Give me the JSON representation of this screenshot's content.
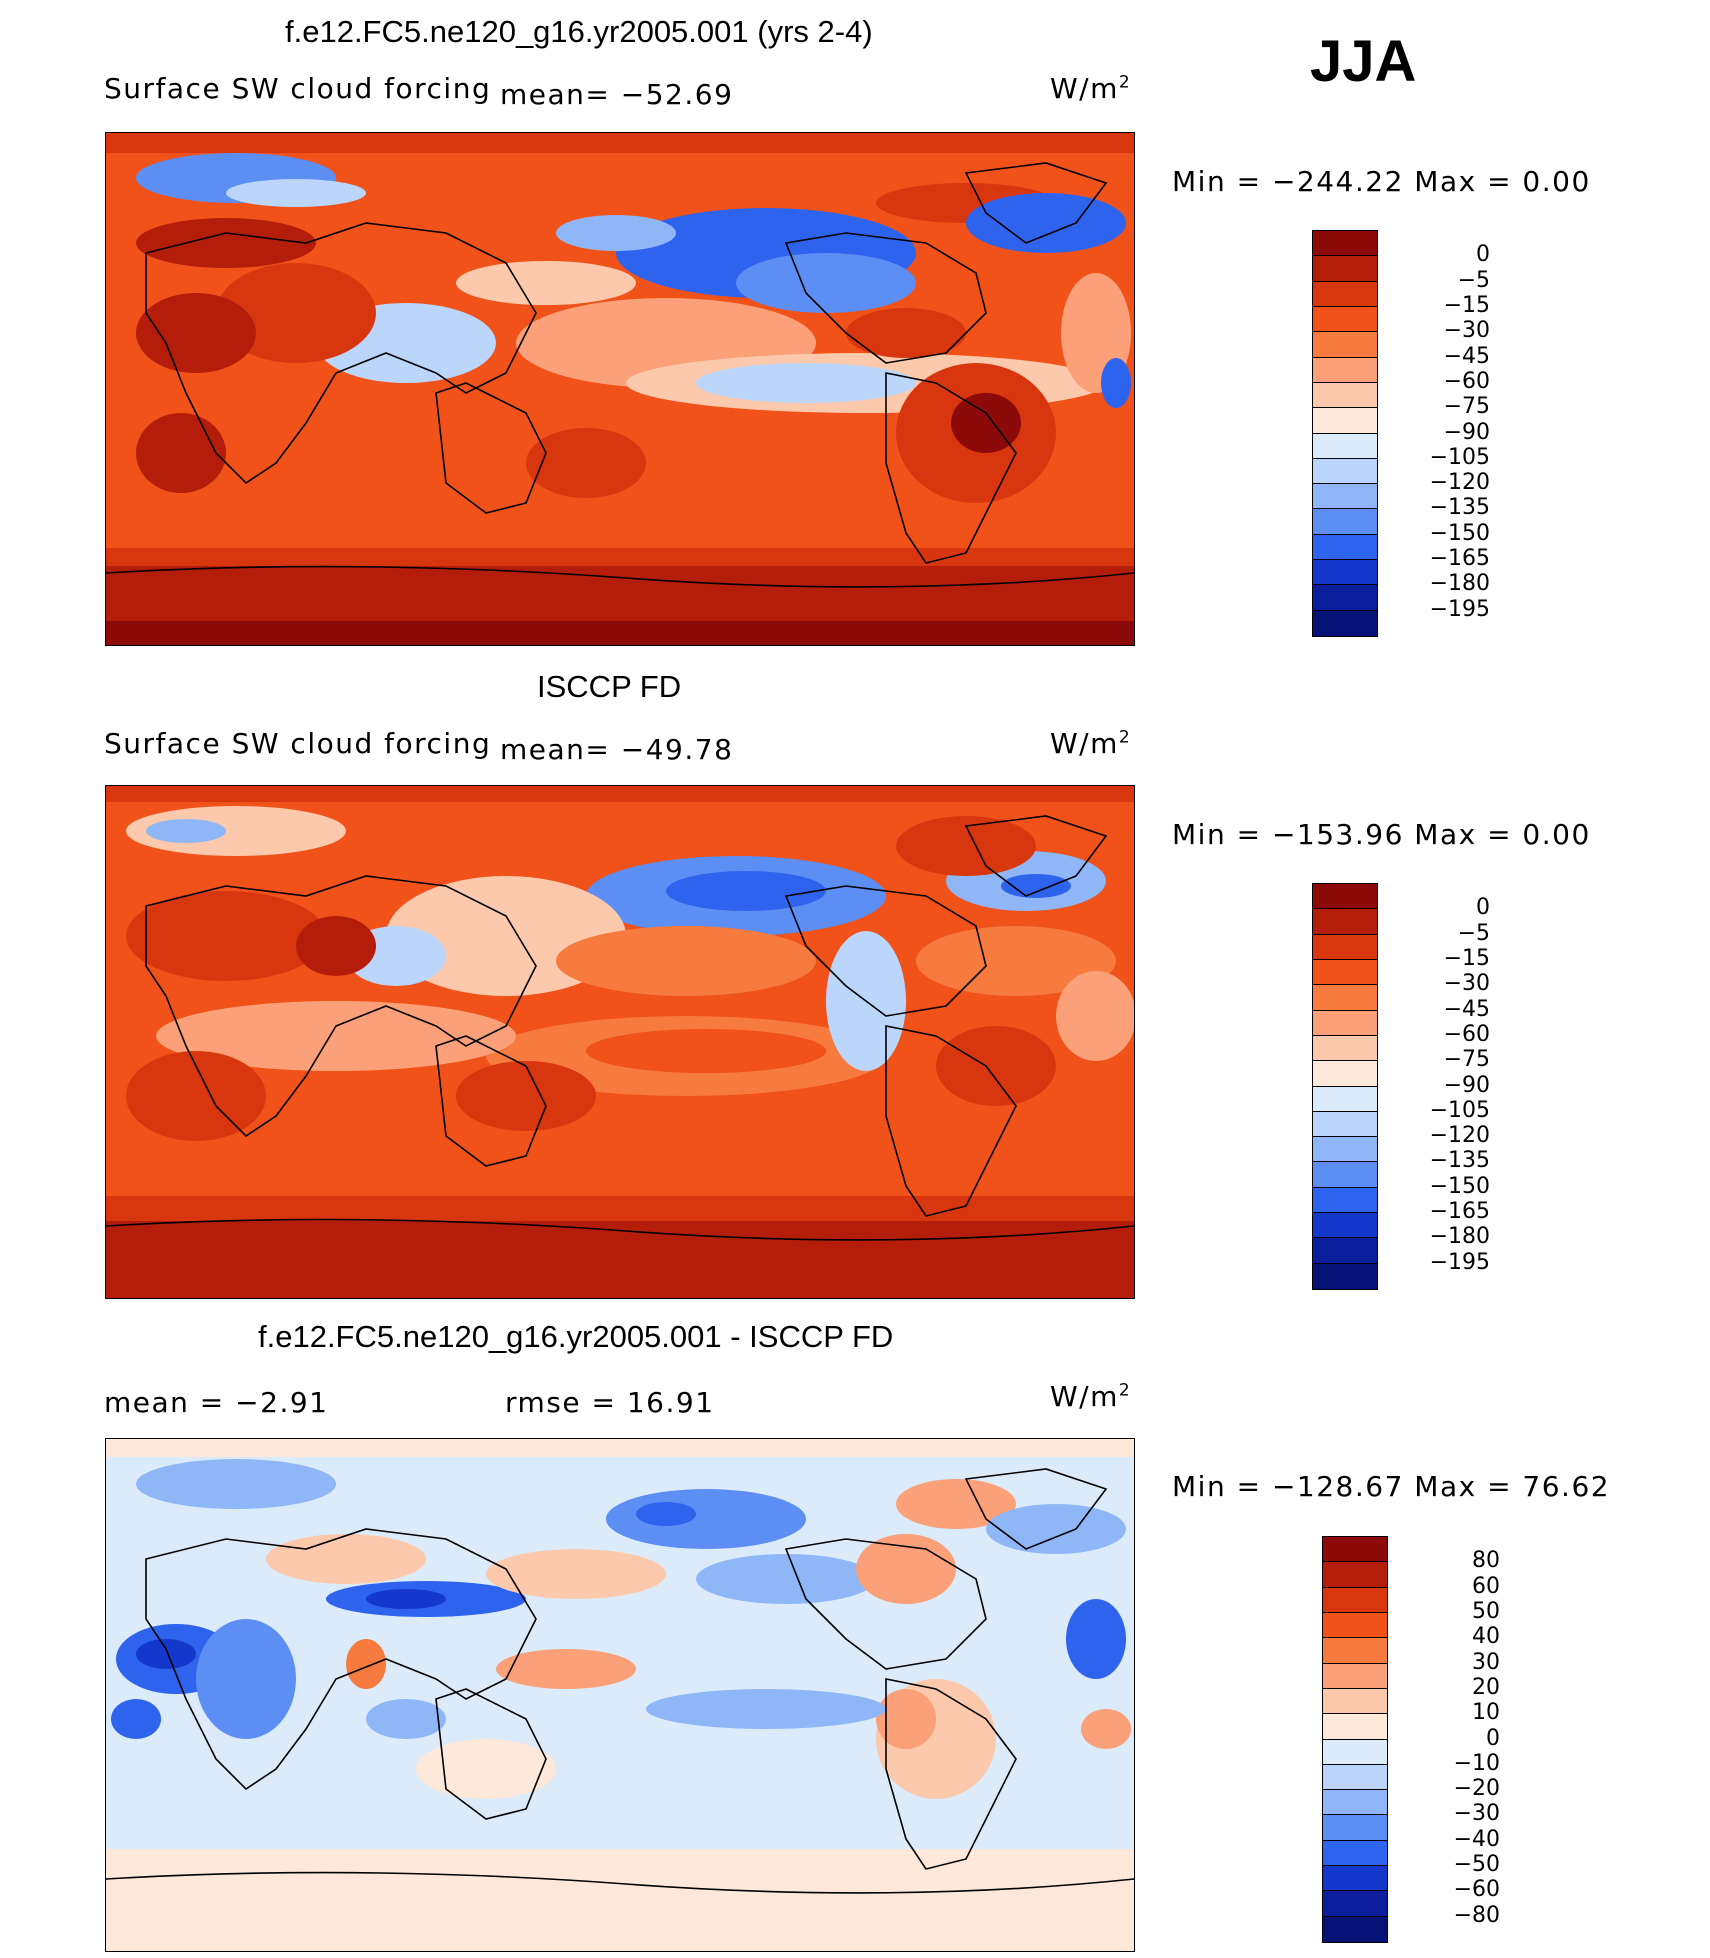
{
  "season": "JJA",
  "panels": [
    {
      "id": "model",
      "title": "f.e12.FC5.ne120_g16.yr2005.001 (yrs 2-4)",
      "variable": "Surface SW cloud forcing",
      "stat_left": "mean= −52.69",
      "stat_right": "",
      "unit_base": "W/m",
      "unit_exp": "2",
      "minmax": "Min = −244.22 Max =    0.00",
      "levels": [
        "0",
        "−5",
        "−15",
        "−30",
        "−45",
        "−60",
        "−75",
        "−90",
        "−105",
        "−120",
        "−135",
        "−150",
        "−165",
        "−180",
        "−195"
      ],
      "colors": [
        "#8c0a0a",
        "#b51d0b",
        "#d8360f",
        "#f0521a",
        "#f77a3e",
        "#fba078",
        "#fcc9ac",
        "#fde8da",
        "#dcebfa",
        "#bcd6fb",
        "#8fb6f7",
        "#5d8ef4",
        "#2e63ee",
        "#1538cc",
        "#0b1f9d",
        "#061275"
      ]
    },
    {
      "id": "obs",
      "title": "ISCCP FD",
      "variable": "Surface SW cloud forcing",
      "stat_left": "mean= −49.78",
      "stat_right": "",
      "unit_base": "W/m",
      "unit_exp": "2",
      "minmax": "Min = −153.96 Max =    0.00",
      "levels": [
        "0",
        "−5",
        "−15",
        "−30",
        "−45",
        "−60",
        "−75",
        "−90",
        "−105",
        "−120",
        "−135",
        "−150",
        "−165",
        "−180",
        "−195"
      ],
      "colors": [
        "#8c0a0a",
        "#b51d0b",
        "#d8360f",
        "#f0521a",
        "#f77a3e",
        "#fba078",
        "#fcc9ac",
        "#fde8da",
        "#dcebfa",
        "#bcd6fb",
        "#8fb6f7",
        "#5d8ef4",
        "#2e63ee",
        "#1538cc",
        "#0b1f9d",
        "#061275"
      ]
    },
    {
      "id": "diff",
      "title": "f.e12.FC5.ne120_g16.yr2005.001 - ISCCP FD",
      "variable": "",
      "stat_left": "mean =   −2.91",
      "stat_right": "rmse =   16.91",
      "unit_base": "W/m",
      "unit_exp": "2",
      "minmax": "Min = −128.67 Max =  76.62",
      "levels": [
        "80",
        "60",
        "50",
        "40",
        "30",
        "20",
        "10",
        "0",
        "−10",
        "−20",
        "−30",
        "−40",
        "−50",
        "−60",
        "−80"
      ],
      "colors": [
        "#8c0a0a",
        "#b51d0b",
        "#d8360f",
        "#f0521a",
        "#f77a3e",
        "#fba078",
        "#fcc9ac",
        "#fde8da",
        "#dcebfa",
        "#bcd6fb",
        "#8fb6f7",
        "#5d8ef4",
        "#2e63ee",
        "#1538cc",
        "#0b1f9d",
        "#061275"
      ]
    }
  ]
}
